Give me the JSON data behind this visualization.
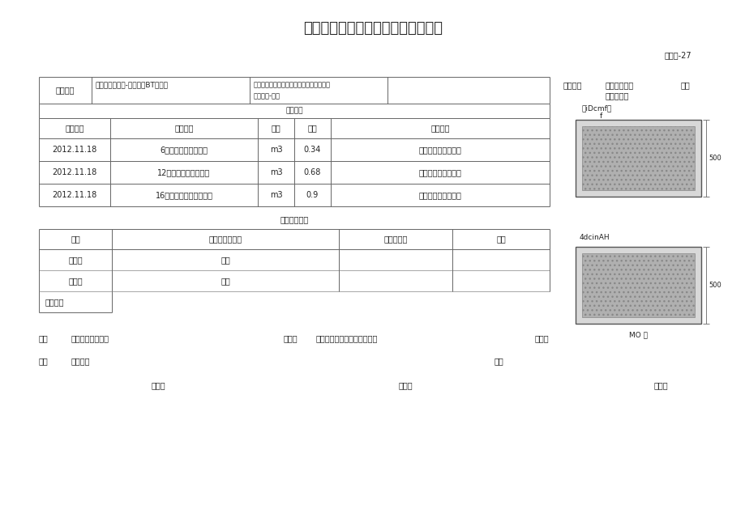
{
  "title": "（种植穴施基肥）工程隐蔽检查记录",
  "doc_number": "渝建纥-27",
  "project_label": "工程名称",
  "project_name": "永川区文曲广场-期工程（BT模式）",
  "contractor_line1": "、一田八重庆市双桥区红岩建筑安装有限责",
  "contractor_line2": "施工单位-八（",
  "check_label": "检查部位",
  "check_loc1": "文曲广场雕塑",
  "check_loc2": "左侧种植穴",
  "drawing_label": "图号",
  "header_cols": [
    "隐蔽日期",
    "隐蔽内容",
    "单位",
    "数量",
    "检查情况"
  ],
  "rows": [
    [
      "2012.11.18",
      "6株紫荆种植穴施基肆",
      "m3",
      "0.34",
      "符合设计及规范要求"
    ],
    [
      "2012.11.18",
      "12株紫薇种植穴施基肆",
      "m3",
      "0.68",
      "符合设计及规范要求"
    ],
    [
      "2012.11.18",
      "16株紫叶李种植穴施基肆",
      "m3",
      "0.9",
      "符合设计及规范要求"
    ]
  ],
  "detection_title": "有关检测资料",
  "detection_header": [
    "名称",
    "检测数据、结论",
    "证、单编号",
    "备注"
  ],
  "detection_rows": [
    [
      "腐殖土",
      "合格",
      "",
      ""
    ],
    [
      "复合肆",
      "合格",
      "",
      ""
    ]
  ],
  "conclusion_label": "检查结论",
  "footer1a": "施工",
  "footer1b": "项目技术负责人：",
  "footer1c": "监理单",
  "footer1d": "监理工程师（建设单位代表）",
  "footer1e": "代表：",
  "footer2a": "单位",
  "footer2b": "记录人：",
  "footer2c": "单位",
  "footer3": "年月日",
  "img1_text1": "』iDcmf『",
  "img1_text2": "f",
  "img1_dim": "500",
  "img2_label": "4dcinAH",
  "img2_dim": "500",
  "img2_bottom": "MO 口",
  "施工单位_label": "施工单位"
}
